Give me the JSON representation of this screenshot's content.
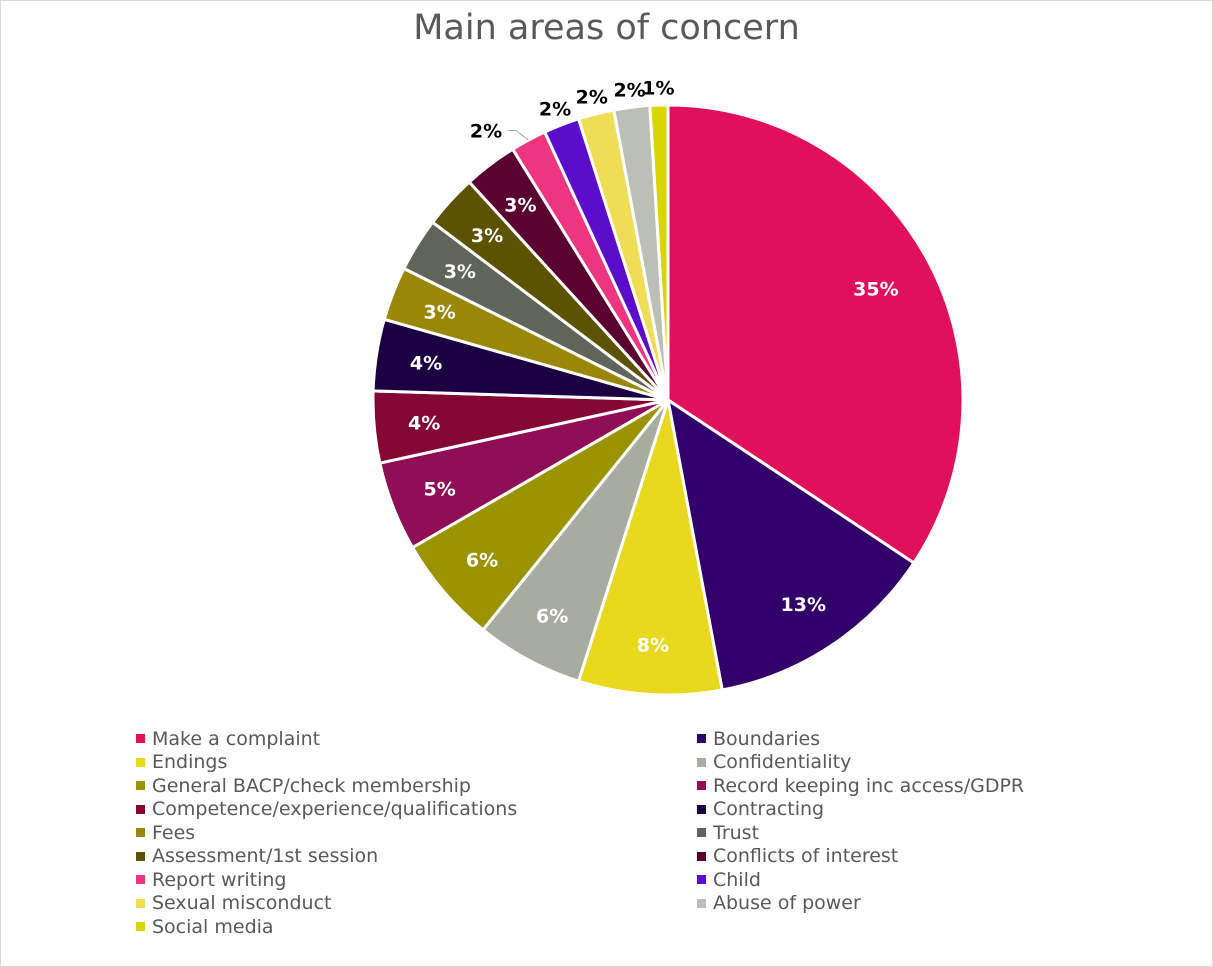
{
  "chart_data": {
    "type": "pie",
    "title": "Main areas of concern",
    "start_angle_deg": 0,
    "direction": "clockwise",
    "legend_position": "bottom",
    "slices": [
      {
        "label": "Make a complaint",
        "value": 35,
        "data_label": "35%",
        "color": "#E0105C",
        "label_color": "#ffffff"
      },
      {
        "label": "Boundaries",
        "value": 13,
        "data_label": "13%",
        "color": "#31006B",
        "label_color": "#ffffff"
      },
      {
        "label": "Endings",
        "value": 8,
        "data_label": "8%",
        "color": "#E8D81E",
        "label_color": "#ffffff"
      },
      {
        "label": "Confidentiality",
        "value": 6,
        "data_label": "6%",
        "color": "#A7ABA0",
        "label_color": "#ffffff"
      },
      {
        "label": "General BACP/check membership",
        "value": 6,
        "data_label": "6%",
        "color": "#9C9300",
        "label_color": "#ffffff"
      },
      {
        "label": "Record keeping inc access/GDPR",
        "value": 5,
        "data_label": "5%",
        "color": "#8F0F57",
        "label_color": "#ffffff"
      },
      {
        "label": "Competence/experience/qualifications",
        "value": 4,
        "data_label": "4%",
        "color": "#850734",
        "label_color": "#ffffff"
      },
      {
        "label": "Contracting",
        "value": 4,
        "data_label": "4%",
        "color": "#1B0042",
        "label_color": "#ffffff"
      },
      {
        "label": "Fees",
        "value": 3,
        "data_label": "3%",
        "color": "#998709",
        "label_color": "#ffffff"
      },
      {
        "label": "Trust",
        "value": 3,
        "data_label": "3%",
        "color": "#60655A",
        "label_color": "#ffffff"
      },
      {
        "label": "Assessment/1st session",
        "value": 3,
        "data_label": "3%",
        "color": "#5D5200",
        "label_color": "#ffffff"
      },
      {
        "label": "Conflicts of interest",
        "value": 3,
        "data_label": "3%",
        "color": "#5A0230",
        "label_color": "#ffffff"
      },
      {
        "label": "Report writing",
        "value": 2,
        "data_label": "2%",
        "color": "#EE3680",
        "label_color": "#000000"
      },
      {
        "label": "Child",
        "value": 2,
        "data_label": "2%",
        "color": "#5A0ECC",
        "label_color": "#000000"
      },
      {
        "label": "Sexual misconduct",
        "value": 2,
        "data_label": "2%",
        "color": "#EEDD55",
        "label_color": "#000000"
      },
      {
        "label": "Abuse of power",
        "value": 2,
        "data_label": "2%",
        "color": "#BCBFB6",
        "label_color": "#000000"
      },
      {
        "label": "Social media",
        "value": 1,
        "data_label": "1%",
        "color": "#D9D504",
        "label_color": "#000000"
      }
    ]
  }
}
